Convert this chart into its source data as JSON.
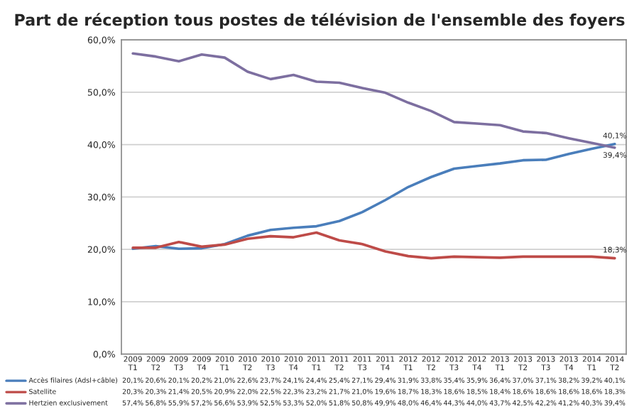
{
  "chart_data": {
    "type": "line",
    "title": "Part de réception tous postes de télévision de l'ensemble des foyers",
    "categories": [
      "2009\nT1",
      "2009\nT2",
      "2009\nT3",
      "2009\nT4",
      "2010\nT1",
      "2010\nT2",
      "2010\nT3",
      "2010\nT4",
      "2011\nT1",
      "2011\nT2",
      "2011\nT3",
      "2011\nT4",
      "2012\nT1",
      "2012\nT2",
      "2012\nT3",
      "2012\nT4",
      "2013\nT1",
      "2013\nT2",
      "2013\nT3",
      "2013\nT4",
      "2014\nT1",
      "2014\nT2"
    ],
    "series": [
      {
        "name": "Accès filaires (Adsl+câble)",
        "color": "#4a7ebb",
        "values": [
          20.1,
          20.6,
          20.1,
          20.2,
          21.0,
          22.6,
          23.7,
          24.1,
          24.4,
          25.4,
          27.1,
          29.4,
          31.9,
          33.8,
          35.4,
          35.9,
          36.4,
          37.0,
          37.1,
          38.2,
          39.2,
          40.1
        ],
        "value_labels": [
          "20,1%",
          "20,6%",
          "20,1%",
          "20,2%",
          "21,0%",
          "22,6%",
          "23,7%",
          "24,1%",
          "24,4%",
          "25,4%",
          "27,1%",
          "29,4%",
          "31,9%",
          "33,8%",
          "35,4%",
          "35,9%",
          "36,4%",
          "37,0%",
          "37,1%",
          "38,2%",
          "39,2%",
          "40,1%"
        ]
      },
      {
        "name": "Satellite",
        "color": "#be4b48",
        "values": [
          20.3,
          20.3,
          21.4,
          20.5,
          20.9,
          22.0,
          22.5,
          22.3,
          23.2,
          21.7,
          21.0,
          19.6,
          18.7,
          18.3,
          18.6,
          18.5,
          18.4,
          18.6,
          18.6,
          18.6,
          18.6,
          18.3
        ],
        "value_labels": [
          "20,3%",
          "20,3%",
          "21,4%",
          "20,5%",
          "20,9%",
          "22,0%",
          "22,5%",
          "22,3%",
          "23,2%",
          "21,7%",
          "21,0%",
          "19,6%",
          "18,7%",
          "18,3%",
          "18,6%",
          "18,5%",
          "18,4%",
          "18,6%",
          "18,6%",
          "18,6%",
          "18,6%",
          "18,3%"
        ]
      },
      {
        "name": "Hertzien exclusivement",
        "color": "#7d6fa0",
        "values": [
          57.4,
          56.8,
          55.9,
          57.2,
          56.6,
          53.9,
          52.5,
          53.3,
          52.0,
          51.8,
          50.8,
          49.9,
          48.0,
          46.4,
          44.3,
          44.0,
          43.7,
          42.5,
          42.2,
          41.2,
          40.3,
          39.4
        ],
        "value_labels": [
          "57,4%",
          "56,8%",
          "55,9%",
          "57,2%",
          "56,6%",
          "53,9%",
          "52,5%",
          "53,3%",
          "52,0%",
          "51,8%",
          "50,8%",
          "49,9%",
          "48,0%",
          "46,4%",
          "44,3%",
          "44,0%",
          "43,7%",
          "42,5%",
          "42,2%",
          "41,2%",
          "40,3%",
          "39,4%"
        ]
      }
    ],
    "ylim": [
      0,
      60
    ],
    "yticks": [
      {
        "value": 0,
        "label": "0,0%"
      },
      {
        "value": 10,
        "label": "10,0%"
      },
      {
        "value": 20,
        "label": "20,0%"
      },
      {
        "value": 30,
        "label": "30,0%"
      },
      {
        "value": 40,
        "label": "40,0%"
      },
      {
        "value": 50,
        "label": "50,0%"
      },
      {
        "value": 60,
        "label": "60,0%"
      }
    ],
    "grid": "y",
    "legend": "bottom left",
    "marker": "none",
    "line_style": "solid"
  }
}
